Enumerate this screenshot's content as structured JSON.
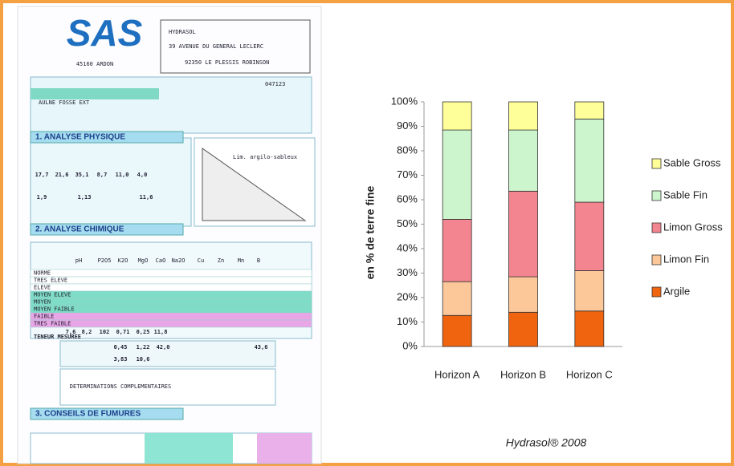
{
  "chart_data": {
    "type": "stacked-bar",
    "y_label": "en % de terre fine",
    "caption": "Hydrasol® 2008",
    "categories": [
      "Horizon A",
      "Horizon B",
      "Horizon C"
    ],
    "series": [
      {
        "name": "Argile",
        "color": "#f0640f",
        "values": [
          12.7,
          14,
          14.5
        ]
      },
      {
        "name": "Limon Fin",
        "color": "#fcc89a",
        "values": [
          13.8,
          14.5,
          16.5
        ]
      },
      {
        "name": "Limon Gross",
        "color": "#f2858f",
        "values": [
          25.5,
          35,
          28
        ]
      },
      {
        "name": "Sable Fin",
        "color": "#cdf5cd",
        "values": [
          36.5,
          25,
          34
        ]
      },
      {
        "name": "Sable Gross",
        "color": "#ffff99",
        "values": [
          11.5,
          11.5,
          7
        ]
      }
    ],
    "ylim": [
      0,
      100
    ],
    "yticks": [
      {
        "value": 0,
        "label": "0%"
      },
      {
        "value": 10,
        "label": "10%"
      },
      {
        "value": 20,
        "label": "20%"
      },
      {
        "value": 30,
        "label": "30%"
      },
      {
        "value": 40,
        "label": "40%"
      },
      {
        "value": 50,
        "label": "50%"
      },
      {
        "value": 60,
        "label": "60%"
      },
      {
        "value": 70,
        "label": "70%"
      },
      {
        "value": 80,
        "label": "80%"
      },
      {
        "value": 90,
        "label": "90%"
      },
      {
        "value": 100,
        "label": "100%"
      }
    ],
    "legend": "right",
    "grid": false
  },
  "document": {
    "logo": "SAS",
    "city": "45160 ARDON",
    "address": [
      "HYDRASOL",
      "39 AVENUE DU GENERAL LECLERC",
      "92350 LE PLESSIS ROBINSON"
    ],
    "reference": "047123",
    "parcel": "AULNE FOSSE EXT",
    "sections": [
      "1. ANALYSE PHYSIQUE",
      "2. ANALYSE CHIMIQUE",
      "3. CONSEILS DE FUMURES"
    ],
    "granulometry": [
      "17,7",
      "21,6",
      "35,1",
      "8,7",
      "11,0",
      "4,0"
    ],
    "organic": [
      "1,9",
      "1,13",
      "11,6"
    ],
    "texture": "Lim. argilo-sableux",
    "columns": [
      "pH",
      "P2O5",
      "K2O",
      "MgO",
      "CaO",
      "Na2O",
      "Cu",
      "Zn",
      "Mn",
      "B"
    ],
    "levels": [
      "NORME",
      "TRES ELEVE",
      "ELEVE",
      "MOYEN ELEVE",
      "MOYEN",
      "MOYEN FAIBLE",
      "FAIBLE",
      "TRES FAIBLE"
    ],
    "measured_label": "TENEUR MESUREE",
    "measured": [
      "7,6",
      "8,2",
      "102",
      "0,71",
      "0,25",
      "11,8"
    ],
    "cations": [
      "0,45",
      "1,22",
      "42,0",
      "3,83",
      "10,6",
      "43,6"
    ],
    "complementary": "DETERMINATIONS COMPLEMENTAIRES"
  }
}
